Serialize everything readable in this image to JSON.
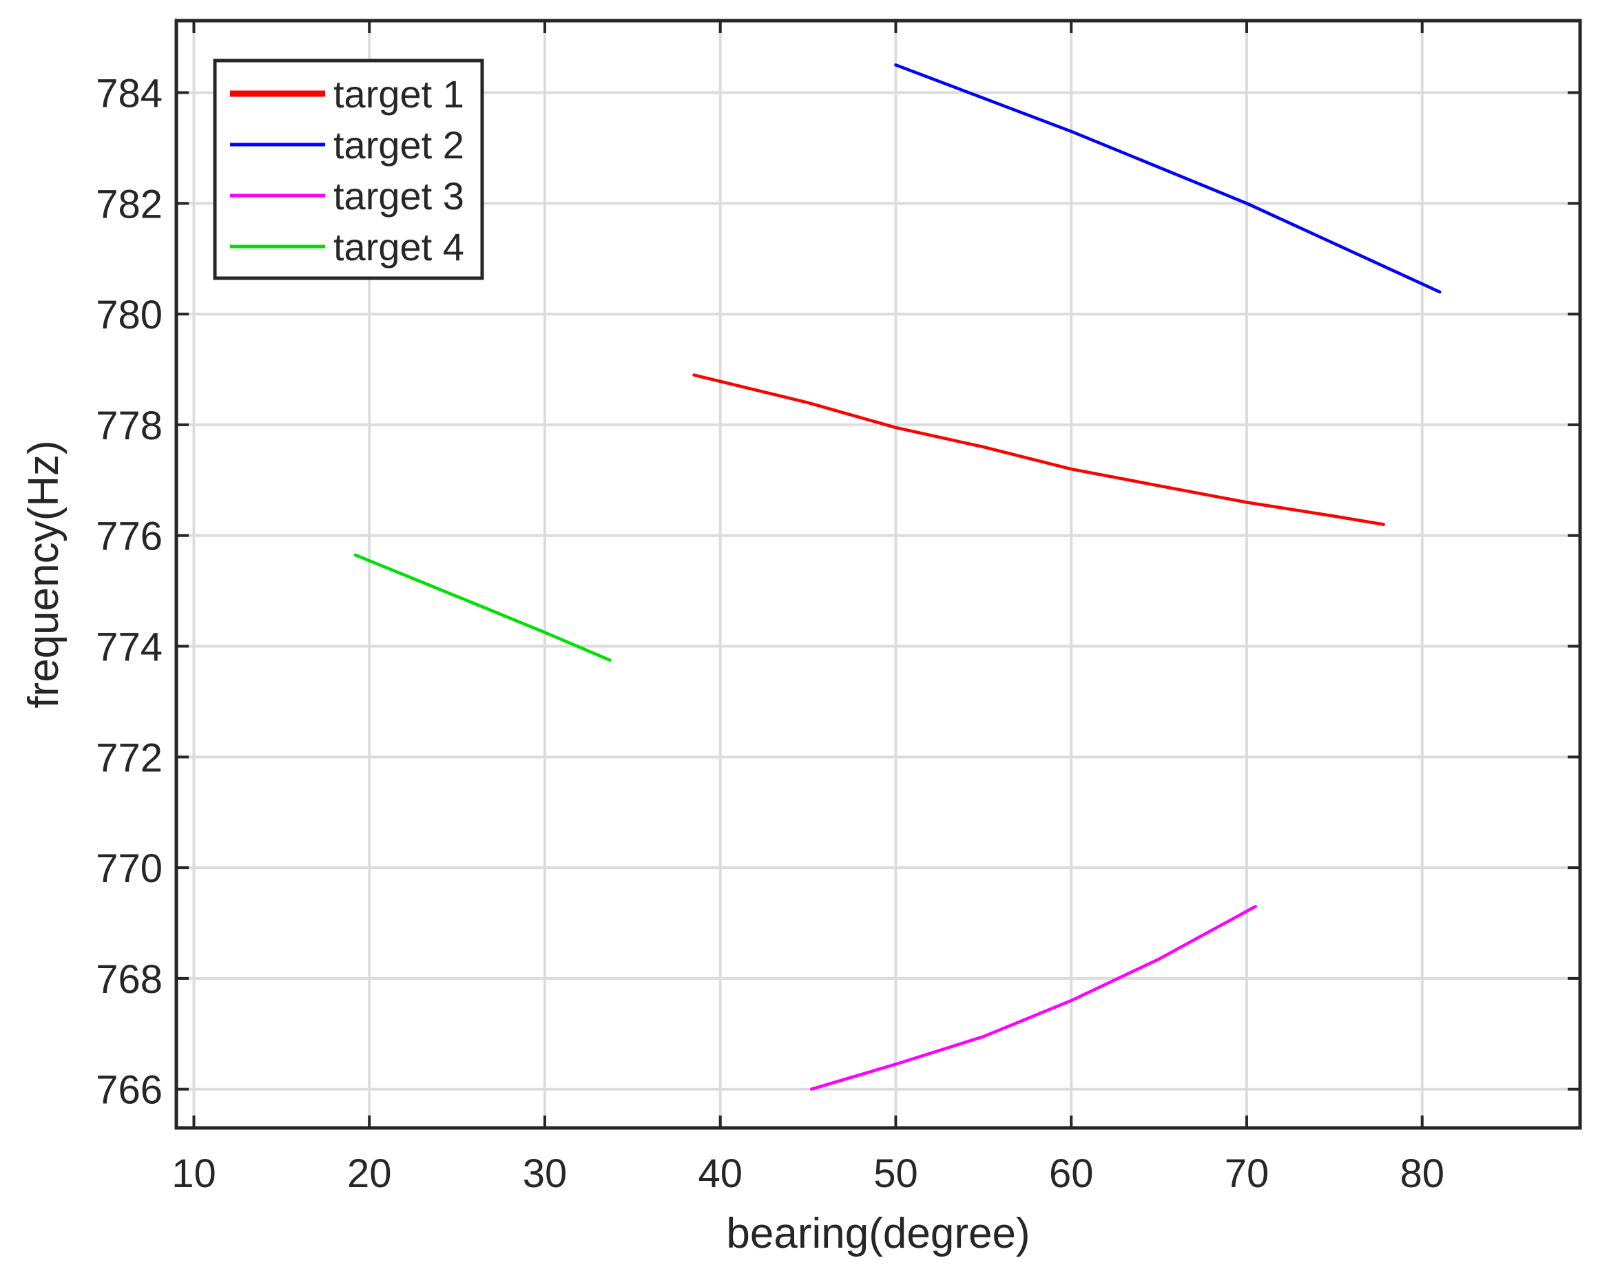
{
  "chart_data": {
    "type": "line",
    "title": "",
    "xlabel": "bearing(degree)",
    "ylabel": "frequency(Hz)",
    "xlim": [
      9,
      89
    ],
    "ylim": [
      765.3,
      785.3
    ],
    "x_ticks": [
      10,
      20,
      30,
      40,
      50,
      60,
      70,
      80
    ],
    "y_ticks": [
      766,
      768,
      770,
      772,
      774,
      776,
      778,
      780,
      782,
      784
    ],
    "grid": true,
    "legend_position": "top-left",
    "series": [
      {
        "name": "target 1",
        "color": "#ff0000",
        "x": [
          38.5,
          45,
          50,
          55,
          60,
          65,
          70,
          75,
          77.8
        ],
        "y": [
          778.9,
          778.4,
          777.95,
          777.6,
          777.2,
          776.9,
          776.6,
          776.35,
          776.2
        ]
      },
      {
        "name": "target 2",
        "color": "#0000ff",
        "x": [
          50,
          60,
          70,
          81
        ],
        "y": [
          784.5,
          783.3,
          782.0,
          780.4
        ]
      },
      {
        "name": "target 3",
        "color": "#ff00ff",
        "x": [
          45.2,
          50,
          55,
          60,
          65,
          70.5
        ],
        "y": [
          766.0,
          766.45,
          766.95,
          767.6,
          768.35,
          769.3
        ]
      },
      {
        "name": "target 4",
        "color": "#00e000",
        "x": [
          19.2,
          25,
          30,
          33.7
        ],
        "y": [
          775.65,
          774.9,
          774.25,
          773.75
        ]
      }
    ]
  }
}
